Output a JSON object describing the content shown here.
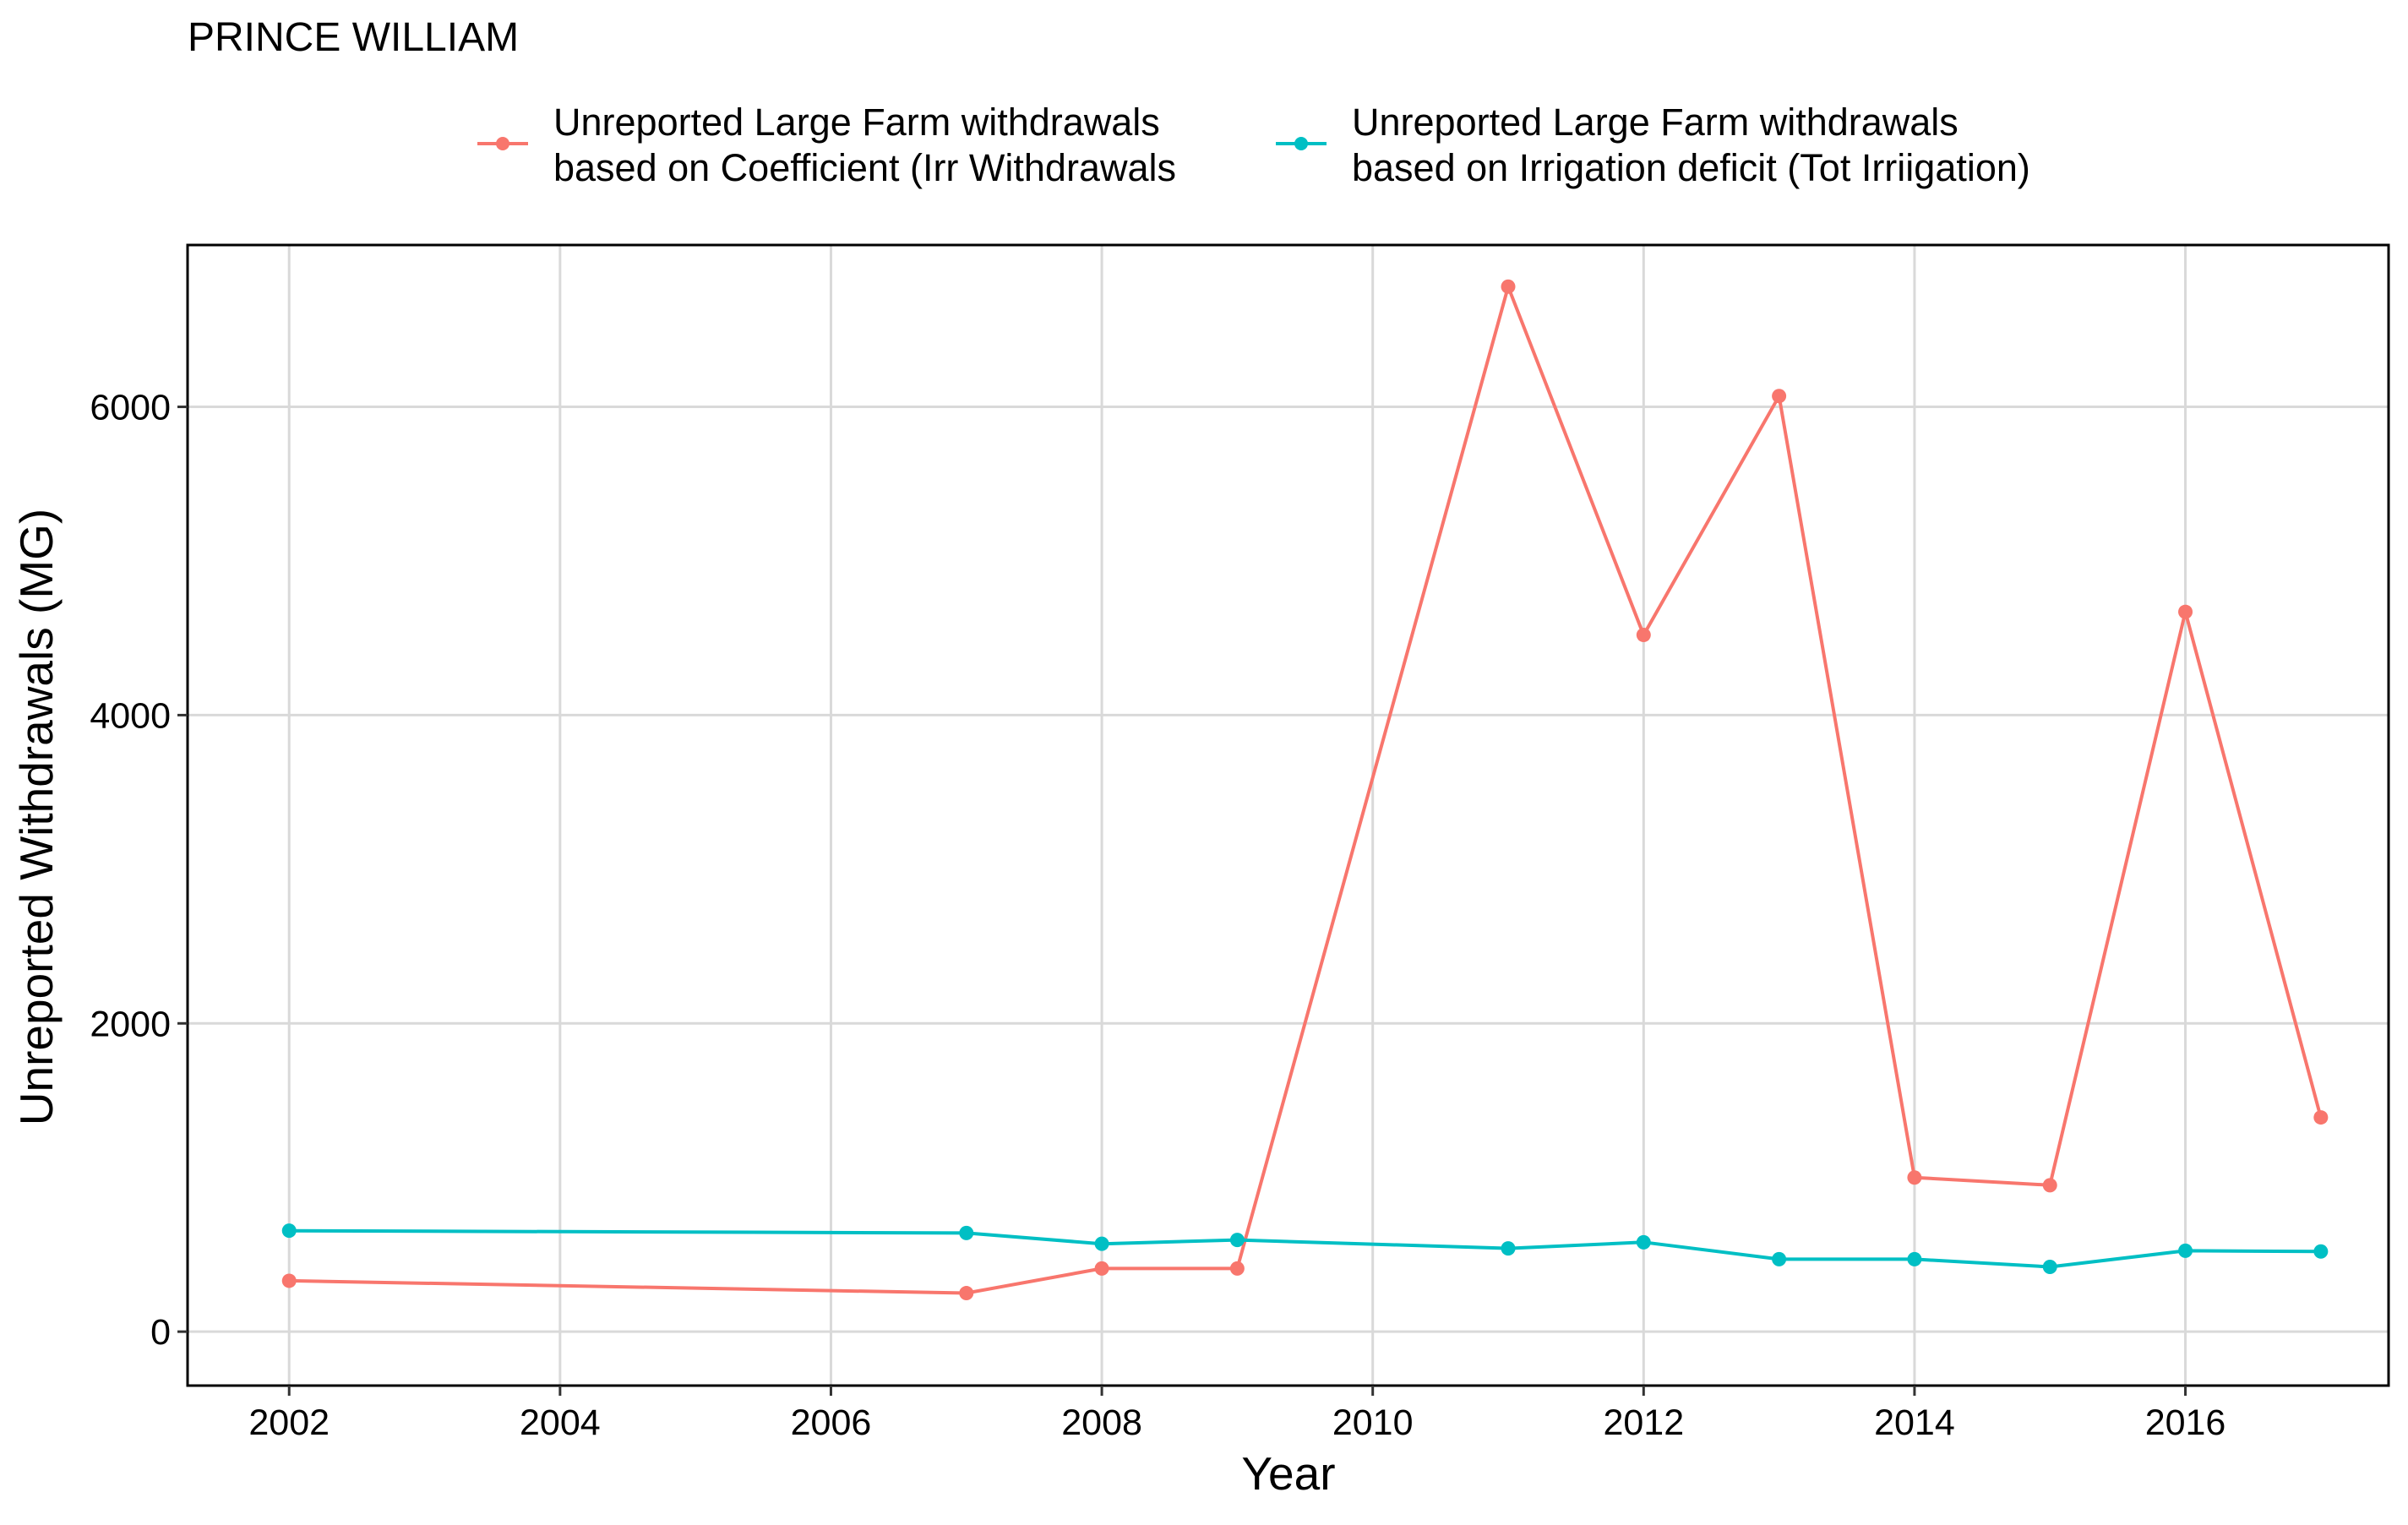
{
  "chart_data": {
    "type": "line",
    "title": "PRINCE WILLIAM",
    "xlabel": "Year",
    "ylabel": "Unreported Withdrawals (MG)",
    "xlim": [
      2001.25,
      2017.5
    ],
    "ylim": [
      -350,
      7050
    ],
    "x_ticks": [
      2002,
      2004,
      2006,
      2008,
      2010,
      2012,
      2014,
      2016
    ],
    "y_ticks": [
      0,
      2000,
      4000,
      6000
    ],
    "grid": true,
    "legend_position": "top",
    "series": [
      {
        "name": "Unreported Large Farm withdrawals based on Coefficient (Irr Withdrawals",
        "legend_lines": [
          "Unreported Large Farm withdrawals",
          "based on Coefficient (Irr Withdrawals"
        ],
        "color": "#F8766D",
        "points": [
          {
            "x": 2002,
            "y": 330
          },
          {
            "x": 2007,
            "y": 250
          },
          {
            "x": 2008,
            "y": 410
          },
          {
            "x": 2009,
            "y": 410
          },
          {
            "x": 2011,
            "y": 6780
          },
          {
            "x": 2012,
            "y": 4520
          },
          {
            "x": 2013,
            "y": 6070
          },
          {
            "x": 2014,
            "y": 1000
          },
          {
            "x": 2015,
            "y": 950
          },
          {
            "x": 2016,
            "y": 4670
          },
          {
            "x": 2017,
            "y": 1390
          }
        ]
      },
      {
        "name": "Unreported Large Farm withdrawals based on Irrigation deficit (Tot Irriigation)",
        "legend_lines": [
          "Unreported Large Farm withdrawals",
          "based on Irrigation deficit (Tot Irriigation)"
        ],
        "color": "#00BFC4",
        "points": [
          {
            "x": 2002,
            "y": 655
          },
          {
            "x": 2007,
            "y": 640
          },
          {
            "x": 2008,
            "y": 570
          },
          {
            "x": 2009,
            "y": 595
          },
          {
            "x": 2011,
            "y": 540
          },
          {
            "x": 2012,
            "y": 580
          },
          {
            "x": 2013,
            "y": 470
          },
          {
            "x": 2014,
            "y": 470
          },
          {
            "x": 2015,
            "y": 420
          },
          {
            "x": 2016,
            "y": 525
          },
          {
            "x": 2017,
            "y": 520
          }
        ]
      }
    ]
  }
}
